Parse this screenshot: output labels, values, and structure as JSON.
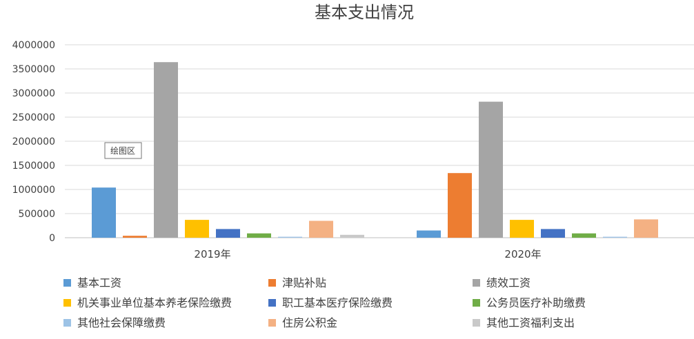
{
  "title": "基本支出情况",
  "tooltip": "绘图区",
  "chart_data": {
    "type": "bar",
    "title": "基本支出情况",
    "categories": [
      "2019年",
      "2020年"
    ],
    "ylim": [
      0,
      4000000
    ],
    "yticks": [
      0,
      500000,
      1000000,
      1500000,
      2000000,
      2500000,
      3000000,
      3500000,
      4000000
    ],
    "grid": true,
    "legend_position": "bottom",
    "series": [
      {
        "name": "基本工资",
        "color": "#5B9BD5",
        "values": [
          1040000,
          150000
        ]
      },
      {
        "name": "津贴补贴",
        "color": "#ED7D31",
        "values": [
          40000,
          1340000
        ]
      },
      {
        "name": "绩效工资",
        "color": "#A5A5A5",
        "values": [
          3640000,
          2820000
        ]
      },
      {
        "name": "机关事业单位基本养老保险缴费",
        "color": "#FFC000",
        "values": [
          370000,
          370000
        ]
      },
      {
        "name": "职工基本医疗保险缴费",
        "color": "#4472C4",
        "values": [
          180000,
          180000
        ]
      },
      {
        "name": "公务员医疗补助缴费",
        "color": "#70AD47",
        "values": [
          90000,
          90000
        ]
      },
      {
        "name": "其他社会保障缴费",
        "color": "#9DC3E6",
        "values": [
          20000,
          20000
        ]
      },
      {
        "name": "住房公积金",
        "color": "#F4B183",
        "values": [
          350000,
          380000
        ]
      },
      {
        "name": "其他工资福利支出",
        "color": "#C9C9C9",
        "values": [
          60000,
          0
        ]
      }
    ]
  }
}
